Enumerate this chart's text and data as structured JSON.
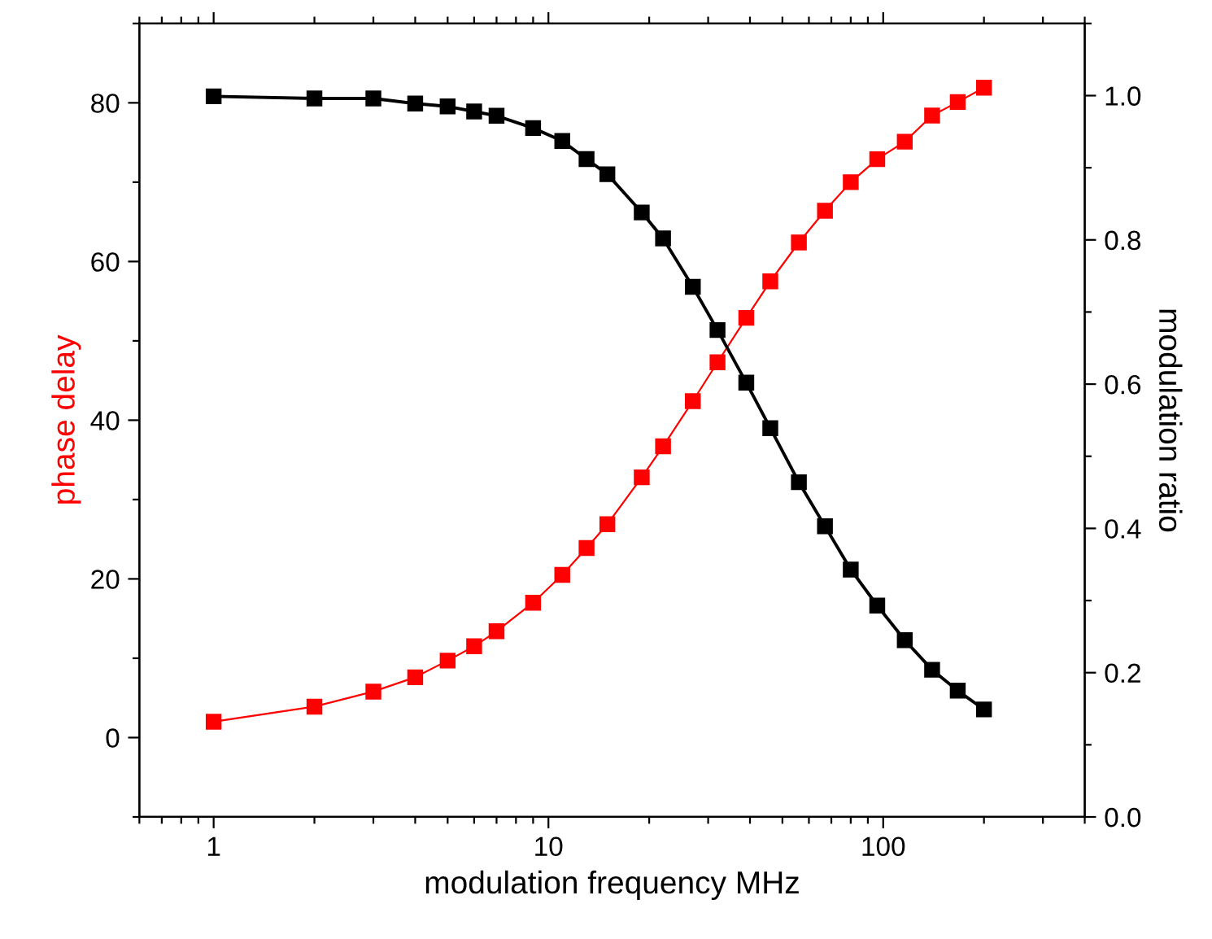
{
  "chart_data": {
    "type": "line",
    "xlabel": "modulation frequency MHz",
    "ylabel": "phase delay",
    "y2label": "modulation ratio",
    "log": "x",
    "marker": "square",
    "line_style": "solid",
    "grid": false,
    "legend": false,
    "xlim": [
      0.6,
      400
    ],
    "xticks": [
      {
        "value": 0.6,
        "label": null
      },
      {
        "value": 0.7,
        "label": null
      },
      {
        "value": 0.8,
        "label": null
      },
      {
        "value": 0.9,
        "label": null
      },
      1,
      {
        "value": 2,
        "label": null
      },
      {
        "value": 3,
        "label": null
      },
      {
        "value": 4,
        "label": null
      },
      {
        "value": 5,
        "label": null
      },
      {
        "value": 6,
        "label": null
      },
      {
        "value": 7,
        "label": null
      },
      {
        "value": 8,
        "label": null
      },
      {
        "value": 9,
        "label": null
      },
      10,
      {
        "value": 20,
        "label": null
      },
      {
        "value": 30,
        "label": null
      },
      {
        "value": 40,
        "label": null
      },
      {
        "value": 50,
        "label": null
      },
      {
        "value": 60,
        "label": null
      },
      {
        "value": 70,
        "label": null
      },
      {
        "value": 80,
        "label": null
      },
      {
        "value": 90,
        "label": null
      },
      100,
      {
        "value": 200,
        "label": null
      },
      {
        "value": 300,
        "label": null
      },
      {
        "value": 400,
        "label": null
      }
    ],
    "ylim": [
      -10,
      90
    ],
    "yticks": [
      {
        "value": -10,
        "label": null
      },
      0,
      {
        "value": 10,
        "label": null
      },
      20,
      {
        "value": 30,
        "label": null
      },
      40,
      {
        "value": 50,
        "label": null
      },
      60,
      {
        "value": 70,
        "label": null
      },
      80,
      {
        "value": 90,
        "label": null
      }
    ],
    "y2lim": [
      0,
      1.1
    ],
    "y2ticks": [
      {
        "value": 0.0,
        "label": "0.0"
      },
      {
        "value": 0.1,
        "label": null
      },
      0.2,
      {
        "value": 0.3,
        "label": null
      },
      0.4,
      {
        "value": 0.5,
        "label": null
      },
      0.6,
      {
        "value": 0.7,
        "label": null
      },
      0.8,
      {
        "value": 0.9,
        "label": null
      },
      {
        "value": 1.0,
        "label": "1.0"
      },
      {
        "value": 1.1,
        "label": null
      }
    ],
    "x": [
      1,
      2,
      3,
      4,
      5,
      6,
      7,
      9,
      11,
      13,
      15,
      19,
      22,
      27,
      32,
      39,
      46,
      56,
      67,
      80,
      96,
      116,
      140,
      167,
      200
    ],
    "series": [
      {
        "color": "#ff0000",
        "values": [
          2.0,
          3.9,
          5.8,
          7.6,
          9.7,
          11.5,
          13.4,
          17.0,
          20.5,
          23.9,
          26.9,
          32.8,
          36.7,
          42.4,
          47.3,
          52.9,
          57.5,
          62.4,
          66.4,
          70.0,
          72.9,
          75.1,
          78.4,
          80.1,
          81.9
        ]
      },
      {
        "color": "#000000",
        "axis": "y2",
        "values": [
          0.999,
          0.996,
          0.996,
          0.989,
          0.985,
          0.978,
          0.972,
          0.955,
          0.937,
          0.912,
          0.891,
          0.838,
          0.802,
          0.735,
          0.675,
          0.602,
          0.539,
          0.464,
          0.403,
          0.343,
          0.293,
          0.245,
          0.204,
          0.175,
          0.149
        ]
      }
    ]
  }
}
